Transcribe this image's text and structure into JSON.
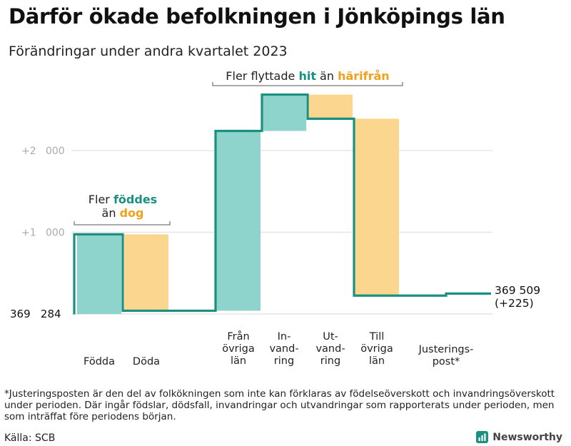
{
  "title": "Därför ökade befolkningen i Jönköpings län",
  "subtitle": "Förändringar under andra kvartalet 2023",
  "colors": {
    "line": "#1a9080",
    "increase": "#8ed4cc",
    "decrease": "#fbd68e",
    "accent_green": "#1a9080",
    "accent_orange": "#f2a01c",
    "grid": "#e6e6e6",
    "tick": "#aaaaaa"
  },
  "chart_data": {
    "type": "waterfall",
    "title": "Därför ökade befolkningen i Jönköpings län",
    "subtitle": "Förändringar under andra kvartalet 2023",
    "start_value": 369284,
    "start_label": "369 284",
    "end_value": 369509,
    "end_label": "369 509",
    "end_change_label": "(+225)",
    "yticks": [
      {
        "value": 1000,
        "label": "+1 000"
      },
      {
        "value": 2000,
        "label": "+2 000"
      }
    ],
    "ylim": [
      0,
      2700
    ],
    "steps": [
      {
        "name": "Födda",
        "label_lines": [
          "Födda"
        ],
        "delta": 975,
        "kind": "increase"
      },
      {
        "name": "Döda",
        "label_lines": [
          "Döda"
        ],
        "delta": -935,
        "kind": "decrease"
      },
      {
        "name": "Från övriga län",
        "label_lines": [
          "Från",
          "övriga",
          "län"
        ],
        "delta": 2200,
        "kind": "increase"
      },
      {
        "name": "Invandring",
        "label_lines": [
          "In-",
          "vand-",
          "ring"
        ],
        "delta": 445,
        "kind": "increase"
      },
      {
        "name": "Utvandring",
        "label_lines": [
          "Ut-",
          "vand-",
          "ring"
        ],
        "delta": -295,
        "kind": "decrease"
      },
      {
        "name": "Till övriga län",
        "label_lines": [
          "Till",
          "övriga",
          "län"
        ],
        "delta": -2165,
        "kind": "decrease"
      },
      {
        "name": "Justeringspost*",
        "label_lines": [
          "Justerings-",
          "post*"
        ],
        "delta": 25,
        "kind": "adjustment"
      }
    ],
    "annotations": [
      {
        "name": "births-deaths",
        "parts": [
          {
            "text": "Fler ",
            "style": "normal"
          },
          {
            "text": "föddes",
            "style": "green"
          }
        ],
        "parts2": [
          {
            "text": "än ",
            "style": "normal"
          },
          {
            "text": "dog",
            "style": "orange"
          }
        ]
      },
      {
        "name": "migration",
        "parts": [
          {
            "text": "Fler flyttade ",
            "style": "normal"
          },
          {
            "text": "hit",
            "style": "green"
          },
          {
            "text": " än ",
            "style": "normal"
          },
          {
            "text": "härifrån",
            "style": "orange"
          }
        ]
      }
    ]
  },
  "footnote": "*Justeringsposten är den del av folkökningen som inte kan förklaras av födelseöverskott och invandringsöverskott under perioden. Där ingår födslar, dödsfall, invandringar och utvandringar som rapporterats under perioden, men som inträffat före periodens början.",
  "source": "Källa: SCB",
  "brand": "Newsworthy",
  "brand_icon": "bar-chart-logo-icon"
}
